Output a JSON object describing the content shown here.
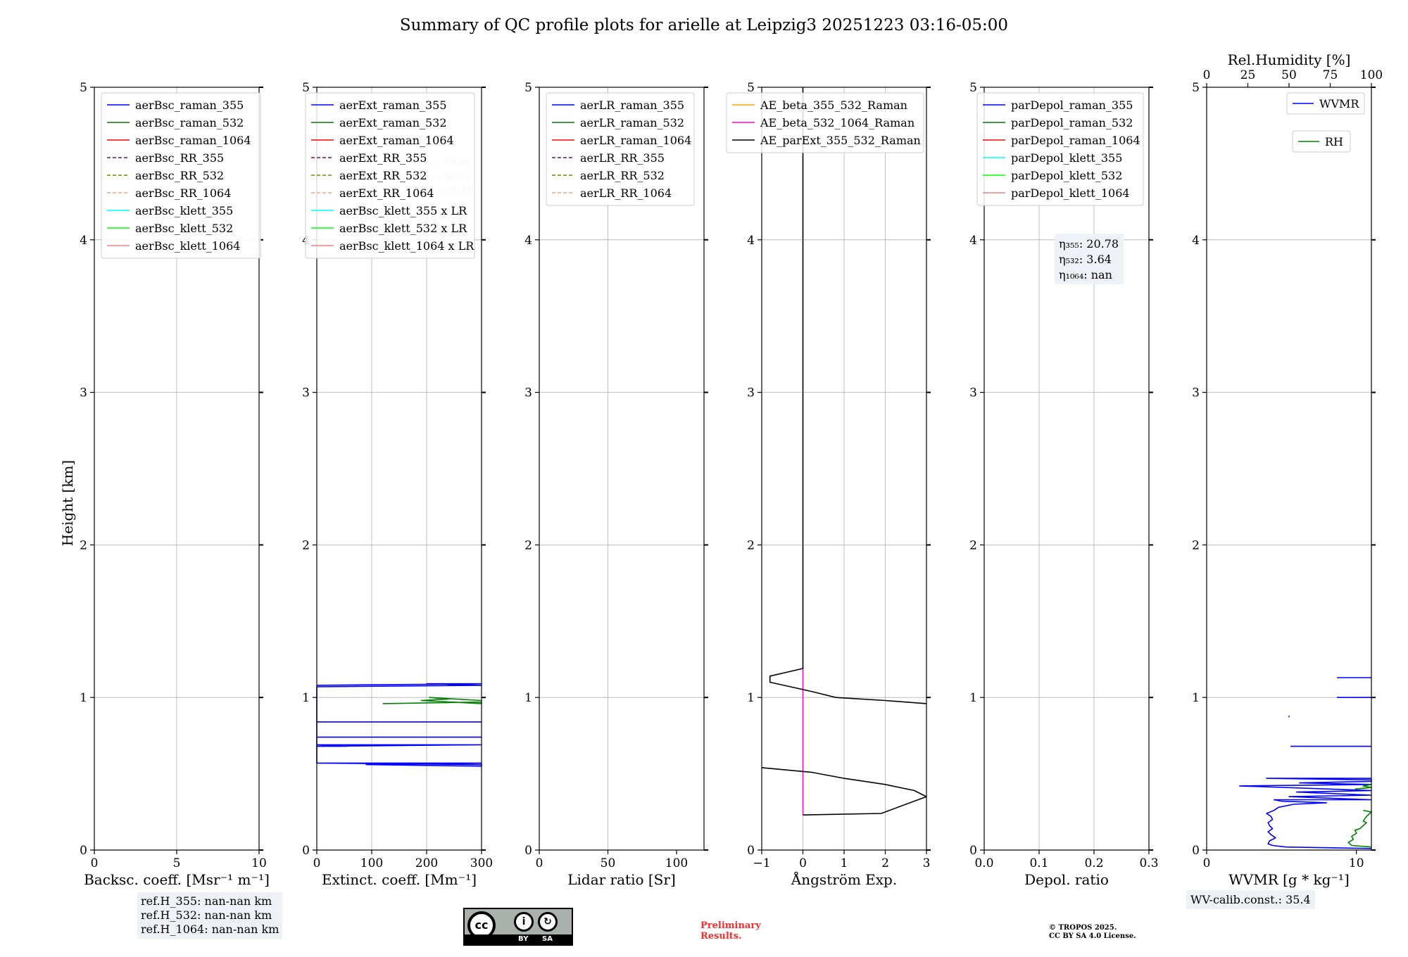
{
  "title": "Summary of QC profile plots for arielle at Leipzig3 20251223 03:16-05:00",
  "ylabel": "Height [km]",
  "colors": {
    "blue": "#0000ff",
    "green": "#008000",
    "red": "#ff0000",
    "purple": "#800080",
    "olive": "#808000",
    "salmon": "#ffa07a",
    "cyan": "#00ffff",
    "lime": "#00ff00",
    "lightcoral": "#f08080",
    "orange": "#ffa500",
    "magenta": "#ff00ff",
    "black": "#000000"
  },
  "chart_data": [
    {
      "type": "line",
      "id": "bsc",
      "xlabel": "Backsc. coeff. [Msr⁻¹ m⁻¹]",
      "xlim": [
        0,
        10
      ],
      "xticks": [
        0,
        5,
        10
      ],
      "xticklabels": [
        "0",
        "5",
        "10"
      ],
      "ylim": [
        0,
        5
      ],
      "yticks": [
        0,
        1,
        2,
        3,
        4,
        5
      ],
      "yticklabels": [
        "0",
        "1",
        "2",
        "3",
        "4",
        "5"
      ],
      "legend_position": "top-left",
      "legend": [
        {
          "label": "aerBsc_raman_355",
          "color": "blue",
          "dash": false
        },
        {
          "label": "aerBsc_raman_532",
          "color": "green",
          "dash": false
        },
        {
          "label": "aerBsc_raman_1064",
          "color": "red",
          "dash": false
        },
        {
          "label": "aerBsc_RR_355",
          "color": "purple",
          "dash": true
        },
        {
          "label": "aerBsc_RR_532",
          "color": "olive",
          "dash": true
        },
        {
          "label": "aerBsc_RR_1064",
          "color": "salmon",
          "dash": true
        },
        {
          "label": "aerBsc_klett_355",
          "color": "cyan",
          "dash": false
        },
        {
          "label": "aerBsc_klett_532",
          "color": "lime",
          "dash": false
        },
        {
          "label": "aerBsc_klett_1064",
          "color": "lightcoral",
          "dash": false
        }
      ],
      "series": []
    },
    {
      "type": "line",
      "id": "ext",
      "xlabel": "Extinct. coeff. [Mm⁻¹]",
      "xlim": [
        0,
        300
      ],
      "xticks": [
        0,
        100,
        200,
        300
      ],
      "xticklabels": [
        "0",
        "100",
        "200",
        "300"
      ],
      "ylim": [
        0,
        5
      ],
      "yticks": [
        0,
        1,
        2,
        3,
        4,
        5
      ],
      "yticklabels": [
        "0",
        "1",
        "2",
        "3",
        "4",
        "5"
      ],
      "legend_position": "top-left",
      "legend": [
        {
          "label": "aerExt_raman_355",
          "color": "blue",
          "dash": false
        },
        {
          "label": "aerExt_raman_532",
          "color": "green",
          "dash": false
        },
        {
          "label": "aerExt_raman_1064",
          "color": "red",
          "dash": false
        },
        {
          "label": "aerExt_RR_355",
          "color": "purple",
          "dash": true
        },
        {
          "label": "aerExt_RR_532",
          "color": "olive",
          "dash": true
        },
        {
          "label": "aerExt_RR_1064",
          "color": "salmon",
          "dash": true
        },
        {
          "label": "aerBsc_klett_355 x LR",
          "color": "cyan",
          "dash": false
        },
        {
          "label": "aerBsc_klett_532 x LR",
          "color": "lime",
          "dash": false
        },
        {
          "label": "aerBsc_klett_1064 x LR",
          "color": "lightcoral",
          "dash": false
        }
      ],
      "annotation": [
        "LR₃₅₅: 50.00",
        "LR₅₃₂: 50.00",
        "LR₁₀₆₄: 50.00"
      ],
      "series": [
        {
          "name": "aerExt_raman_355",
          "color": "blue",
          "points": [
            [
              0,
              0.57
            ],
            [
              300,
              0.56
            ],
            [
              300,
              0.55
            ],
            [
              90,
              0.56
            ],
            [
              300,
              0.57
            ],
            [
              0,
              0.57
            ],
            [
              0,
              0.68
            ],
            [
              300,
              0.69
            ],
            [
              0,
              0.69
            ],
            [
              55,
              0.68
            ],
            [
              0,
              0.68
            ],
            [
              0,
              0.74
            ],
            [
              300,
              0.74
            ],
            [
              0,
              0.74
            ],
            [
              0,
              0.84
            ],
            [
              300,
              0.84
            ],
            [
              0,
              0.84
            ],
            [
              0,
              1.07
            ],
            [
              300,
              1.08
            ],
            [
              200,
              1.09
            ],
            [
              300,
              1.09
            ],
            [
              0,
              1.08
            ]
          ]
        },
        {
          "name": "aerExt_raman_532",
          "color": "green",
          "points": [
            [
              120,
              0.96
            ],
            [
              300,
              0.97
            ],
            [
              300,
              0.96
            ],
            [
              190,
              0.98
            ],
            [
              240,
              0.99
            ],
            [
              205,
              1.0
            ],
            [
              300,
              0.98
            ]
          ]
        }
      ]
    },
    {
      "type": "line",
      "id": "lr",
      "xlabel": "Lidar ratio [Sr]",
      "xlim": [
        0,
        120
      ],
      "xticks": [
        0,
        50,
        100
      ],
      "xticklabels": [
        "0",
        "50",
        "100"
      ],
      "ylim": [
        0,
        5
      ],
      "yticks": [
        0,
        1,
        2,
        3,
        4,
        5
      ],
      "yticklabels": [
        "0",
        "1",
        "2",
        "3",
        "4",
        "5"
      ],
      "legend_position": "top-left",
      "legend": [
        {
          "label": "aerLR_raman_355",
          "color": "blue",
          "dash": false
        },
        {
          "label": "aerLR_raman_532",
          "color": "green",
          "dash": false
        },
        {
          "label": "aerLR_raman_1064",
          "color": "red",
          "dash": false
        },
        {
          "label": "aerLR_RR_355",
          "color": "purple",
          "dash": true
        },
        {
          "label": "aerLR_RR_532",
          "color": "olive",
          "dash": true
        },
        {
          "label": "aerLR_RR_1064",
          "color": "salmon",
          "dash": true
        }
      ],
      "series": []
    },
    {
      "type": "line",
      "id": "ae",
      "xlabel": "Ångström Exp.",
      "xlim": [
        -1,
        3
      ],
      "xticks": [
        -1,
        0,
        1,
        2,
        3
      ],
      "xticklabels": [
        "−1",
        "0",
        "1",
        "2",
        "3"
      ],
      "ylim": [
        0,
        5
      ],
      "yticks": [
        0,
        1,
        2,
        3,
        4,
        5
      ],
      "yticklabels": [
        "0",
        "1",
        "2",
        "3",
        "4",
        "5"
      ],
      "legend_position": "top-left",
      "legend": [
        {
          "label": "AE_beta_355_532_Raman",
          "color": "orange",
          "dash": false
        },
        {
          "label": "AE_beta_532_1064_Raman",
          "color": "magenta",
          "dash": false
        },
        {
          "label": "AE_parExt_355_532_Raman",
          "color": "black",
          "dash": false
        }
      ],
      "series": [
        {
          "name": "AE_beta_532_1064_Raman",
          "color": "magenta",
          "points": [
            [
              0,
              0.23
            ],
            [
              0,
              1.2
            ]
          ]
        },
        {
          "name": "AE_parExt_355_532_Raman",
          "color": "black",
          "points": [
            [
              0,
              0.23
            ],
            [
              1.9,
              0.24
            ],
            [
              2.2,
              0.27
            ],
            [
              3.0,
              0.35
            ],
            [
              2.7,
              0.39
            ],
            [
              2.0,
              0.43
            ],
            [
              1.0,
              0.47
            ],
            [
              0.2,
              0.51
            ],
            [
              -1.0,
              0.54
            ],
            [
              null,
              null
            ],
            [
              3.0,
              0.96
            ],
            [
              2.0,
              0.98
            ],
            [
              0.8,
              1.0
            ],
            [
              0.2,
              1.04
            ],
            [
              -0.3,
              1.07
            ],
            [
              -0.8,
              1.1
            ],
            [
              -0.8,
              1.14
            ],
            [
              0,
              1.19
            ],
            [
              0,
              5
            ]
          ]
        }
      ]
    },
    {
      "type": "line",
      "id": "dep",
      "xlabel": "Depol. ratio",
      "xlim": [
        0,
        0.3
      ],
      "xticks": [
        0,
        0.1,
        0.2,
        0.3
      ],
      "xticklabels": [
        "0.0",
        "0.1",
        "0.2",
        "0.3"
      ],
      "ylim": [
        0,
        5
      ],
      "yticks": [
        0,
        1,
        2,
        3,
        4,
        5
      ],
      "yticklabels": [
        "0",
        "1",
        "2",
        "3",
        "4",
        "5"
      ],
      "legend_position": "top-left",
      "legend": [
        {
          "label": "parDepol_raman_355",
          "color": "blue",
          "dash": false
        },
        {
          "label": "parDepol_raman_532",
          "color": "green",
          "dash": false
        },
        {
          "label": "parDepol_raman_1064",
          "color": "red",
          "dash": false
        },
        {
          "label": "parDepol_klett_355",
          "color": "cyan",
          "dash": false
        },
        {
          "label": "parDepol_klett_532",
          "color": "lime",
          "dash": false
        },
        {
          "label": "parDepol_klett_1064",
          "color": "lightcoral",
          "dash": false
        }
      ],
      "annotation": [
        "η₃₅₅: 20.78",
        "η₅₃₂: 3.64",
        "η₁₀₆₄: nan"
      ],
      "series": []
    },
    {
      "type": "line",
      "id": "wv",
      "xlabel": "WVMR [g * kg⁻¹]",
      "xlim": [
        0,
        11
      ],
      "xticks": [
        0,
        10
      ],
      "xticklabels": [
        "0",
        "10"
      ],
      "ylim": [
        0,
        5
      ],
      "yticks": [
        0,
        1,
        2,
        3,
        4,
        5
      ],
      "yticklabels": [
        "0",
        "1",
        "2",
        "3",
        "4",
        "5"
      ],
      "top_xlabel": "Rel.Humidity [%]",
      "top_xlim": [
        0,
        100
      ],
      "top_xticks": [
        0,
        25,
        50,
        75,
        100
      ],
      "top_xticklabels": [
        "0",
        "25",
        "50",
        "75",
        "100"
      ],
      "legend_position": "top-right",
      "legend": [
        {
          "label": "WVMR",
          "color": "blue",
          "dash": false
        },
        {
          "label": "RH",
          "color": "green",
          "dash": false
        }
      ],
      "series": [
        {
          "name": "WVMR",
          "color": "blue",
          "axis": "bottom",
          "points": [
            [
              11,
              0.01
            ],
            [
              5.3,
              0.02
            ],
            [
              4.4,
              0.03
            ],
            [
              4.1,
              0.04
            ],
            [
              4.2,
              0.06
            ],
            [
              4.6,
              0.08
            ],
            [
              4.3,
              0.1
            ],
            [
              4.1,
              0.12
            ],
            [
              4.4,
              0.14
            ],
            [
              4.2,
              0.16
            ],
            [
              4.1,
              0.18
            ],
            [
              4.4,
              0.2
            ],
            [
              4.3,
              0.22
            ],
            [
              4.0,
              0.24
            ],
            [
              4.5,
              0.26
            ],
            [
              4.8,
              0.28
            ],
            [
              5.8,
              0.3
            ],
            [
              8.0,
              0.31
            ],
            [
              5.0,
              0.32
            ],
            [
              4.5,
              0.33
            ],
            [
              11,
              0.33
            ],
            [
              5.5,
              0.35
            ],
            [
              11,
              0.36
            ],
            [
              6.0,
              0.38
            ],
            [
              11,
              0.39
            ],
            [
              2.2,
              0.42
            ],
            [
              11,
              0.43
            ],
            [
              6.2,
              0.44
            ],
            [
              11,
              0.45
            ],
            [
              11,
              0.46
            ],
            [
              4.0,
              0.47
            ],
            [
              11,
              0.47
            ],
            [
              null,
              null
            ],
            [
              5.6,
              0.68
            ],
            [
              11,
              0.68
            ],
            [
              null,
              null
            ],
            [
              5.5,
              0.87
            ],
            [
              5.5,
              0.88
            ],
            [
              null,
              null
            ],
            [
              8.7,
              1.0
            ],
            [
              11,
              1.0
            ],
            [
              null,
              null
            ],
            [
              8.7,
              1.13
            ],
            [
              11,
              1.13
            ]
          ]
        },
        {
          "name": "RH",
          "color": "green",
          "axis": "top",
          "points": [
            [
              100,
              0.02
            ],
            [
              88,
              0.03
            ],
            [
              86,
              0.05
            ],
            [
              89,
              0.07
            ],
            [
              88,
              0.09
            ],
            [
              91,
              0.11
            ],
            [
              90,
              0.13
            ],
            [
              93,
              0.14
            ],
            [
              95,
              0.16
            ],
            [
              97,
              0.18
            ],
            [
              95,
              0.19
            ],
            [
              97,
              0.22
            ],
            [
              99,
              0.24
            ],
            [
              100,
              0.25
            ],
            [
              95,
              0.26
            ],
            [
              null,
              null
            ],
            [
              90,
              0.4
            ],
            [
              100,
              0.41
            ],
            [
              95,
              0.42
            ],
            [
              100,
              0.43
            ]
          ]
        }
      ]
    }
  ],
  "footer": {
    "ref_heights": [
      "ref.H_355: nan-nan km",
      "ref.H_532: nan-nan km",
      "ref.H_1064: nan-nan km"
    ],
    "license_badge": {
      "cc": "cc",
      "by": "BY",
      "sa": "SA"
    },
    "preliminary": [
      "Preliminary",
      "Results."
    ],
    "copyright": [
      "© TROPOS 2025.",
      "CC BY SA 4.0 License."
    ],
    "wv_calib": "WV-calib.const.: 35.4"
  }
}
